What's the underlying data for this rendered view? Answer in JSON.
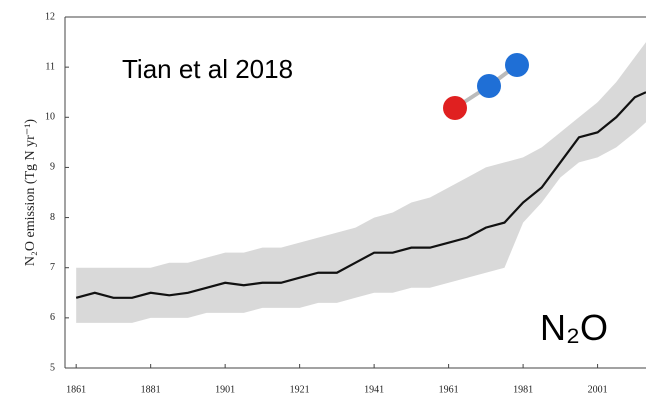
{
  "chart_data": {
    "type": "line",
    "y_label": "N₂O emission (Tg N yr⁻¹)",
    "annotations": [
      "Tian et al 2018",
      "N₂O"
    ],
    "x": [
      1861,
      1866,
      1871,
      1876,
      1881,
      1886,
      1891,
      1896,
      1901,
      1906,
      1911,
      1916,
      1921,
      1926,
      1931,
      1936,
      1941,
      1946,
      1951,
      1956,
      1961,
      1966,
      1971,
      1976,
      1981,
      1986,
      1991,
      1996,
      2001,
      2006,
      2011,
      2014
    ],
    "series": [
      {
        "color": "#111111",
        "values": [
          6.4,
          6.5,
          6.4,
          6.4,
          6.5,
          6.45,
          6.5,
          6.6,
          6.7,
          6.65,
          6.7,
          6.7,
          6.8,
          6.9,
          6.9,
          7.1,
          7.3,
          7.3,
          7.4,
          7.4,
          7.5,
          7.6,
          7.8,
          7.9,
          8.3,
          8.6,
          9.1,
          9.6,
          9.7,
          10.0,
          10.4,
          10.5
        ]
      }
    ],
    "band": {
      "color": "#d9d9d9",
      "lower": [
        5.9,
        5.9,
        5.9,
        5.9,
        6.0,
        6.0,
        6.0,
        6.1,
        6.1,
        6.1,
        6.2,
        6.2,
        6.2,
        6.3,
        6.3,
        6.4,
        6.5,
        6.5,
        6.6,
        6.6,
        6.7,
        6.8,
        6.9,
        7.0,
        7.9,
        8.3,
        8.8,
        9.1,
        9.2,
        9.4,
        9.7,
        9.9
      ],
      "upper": [
        7.0,
        7.0,
        7.0,
        7.0,
        7.0,
        7.1,
        7.1,
        7.2,
        7.3,
        7.3,
        7.4,
        7.4,
        7.5,
        7.6,
        7.7,
        7.8,
        8.0,
        8.1,
        8.3,
        8.4,
        8.6,
        8.8,
        9.0,
        9.1,
        9.2,
        9.4,
        9.7,
        10.0,
        10.3,
        10.7,
        11.2,
        11.5
      ]
    },
    "xlim": [
      1858,
      2014
    ],
    "xticks": [
      1861,
      1881,
      1901,
      1921,
      1941,
      1961,
      1981,
      2001
    ],
    "ylim": [
      5,
      12
    ],
    "yticks": [
      5,
      6,
      7,
      8,
      9,
      10,
      11,
      12
    ]
  }
}
